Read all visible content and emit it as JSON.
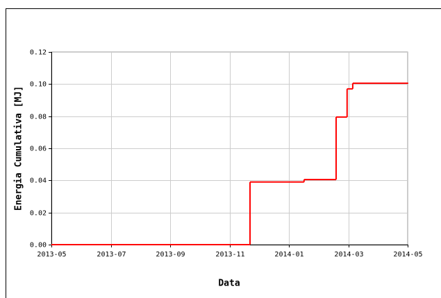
{
  "chart_data": {
    "type": "step",
    "x_label": "Data",
    "y_label": "Energia Cumulativa [MJ]",
    "series": [
      {
        "color": "#ff0000",
        "x": [
          0,
          6.69,
          8.51,
          9.59,
          9.96,
          10.15,
          12
        ],
        "values": [
          0,
          0.039,
          0.0405,
          0.0795,
          0.097,
          0.1005,
          0.1005
        ]
      }
    ],
    "xlim": [
      0,
      12
    ],
    "xticks": [
      {
        "value": 0,
        "label": "2013-05"
      },
      {
        "value": 2,
        "label": "2013-07"
      },
      {
        "value": 4,
        "label": "2013-09"
      },
      {
        "value": 6,
        "label": "2013-11"
      },
      {
        "value": 8,
        "label": "2014-01"
      },
      {
        "value": 10,
        "label": "2014-03"
      },
      {
        "value": 12,
        "label": "2014-05"
      }
    ],
    "ylim": [
      0,
      0.12
    ],
    "yticks": [
      {
        "value": 0,
        "label": "0.00"
      },
      {
        "value": 0.02,
        "label": "0.02"
      },
      {
        "value": 0.04,
        "label": "0.04"
      },
      {
        "value": 0.06,
        "label": "0.06"
      },
      {
        "value": 0.08,
        "label": "0.08"
      },
      {
        "value": 0.1,
        "label": "0.10"
      },
      {
        "value": 0.12,
        "label": "0.12"
      }
    ],
    "grid": true
  }
}
